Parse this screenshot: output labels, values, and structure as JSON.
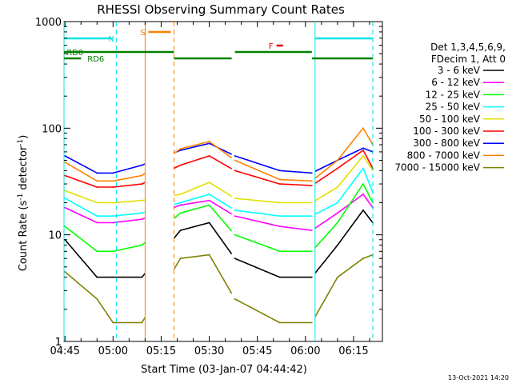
{
  "chart_data": {
    "type": "line",
    "title": "RHESSI Observing Summary Count Rates",
    "xlabel": "Start Time (03-Jan-07 04:44:42)",
    "ylabel_main": "Count Rate (s",
    "ylabel_sup1": "-1",
    "ylabel_mid": " detector",
    "ylabel_sup2": "-1",
    "ylabel_end": ")",
    "yscale": "log",
    "ylim": [
      1,
      1000
    ],
    "xlim": [
      "04:44:42",
      "06:24:00"
    ],
    "x_ticks": [
      "04:45",
      "05:00",
      "05:15",
      "05:30",
      "05:45",
      "06:00",
      "06:15"
    ],
    "y_ticks": [
      "1",
      "10",
      "100",
      "1000"
    ],
    "legend_header": [
      "Det 1,3,4,5,6,9,",
      "FDecim 1, Att 0"
    ],
    "legend_position": "right",
    "grid": false,
    "footer_date": "13-Oct-2021 14:20",
    "flag_labels": {
      "N": "N",
      "S": "S",
      "F": "F",
      "RD0": "RD0",
      "RD6": "RD6"
    },
    "colors": {
      "N": "#00e5e5",
      "S": "#ff8000",
      "F": "#e00000",
      "RD": "#008000"
    },
    "series": [
      {
        "name": "3 - 6 keV",
        "color": "#000000",
        "x": [
          "04:45",
          "04:55",
          "05:00",
          "05:09",
          "05:21",
          "05:30",
          "05:38",
          "05:52",
          "06:02",
          "06:10",
          "06:18",
          "06:21"
        ],
        "y": [
          9,
          4,
          4,
          4,
          11,
          13,
          6,
          4,
          4,
          8,
          17,
          13
        ]
      },
      {
        "name": "6 - 12 keV",
        "color": "#ff00ff",
        "x": [
          "04:45",
          "04:55",
          "05:00",
          "05:09",
          "05:21",
          "05:30",
          "05:38",
          "05:52",
          "06:02",
          "06:10",
          "06:18",
          "06:21"
        ],
        "y": [
          18,
          13,
          13,
          14,
          19,
          21,
          15,
          12,
          11,
          16,
          24,
          18
        ]
      },
      {
        "name": "12 - 25 keV",
        "color": "#00ff00",
        "x": [
          "04:45",
          "04:55",
          "05:00",
          "05:09",
          "05:21",
          "05:30",
          "05:38",
          "05:52",
          "06:02",
          "06:10",
          "06:18",
          "06:21"
        ],
        "y": [
          12,
          7,
          7,
          8,
          16,
          19,
          10,
          7,
          7,
          13,
          30,
          20
        ]
      },
      {
        "name": "25 - 50 keV",
        "color": "#00ffff",
        "x": [
          "04:45",
          "04:55",
          "05:00",
          "05:09",
          "05:21",
          "05:30",
          "05:38",
          "05:52",
          "06:02",
          "06:10",
          "06:18",
          "06:21"
        ],
        "y": [
          22,
          15,
          15,
          16,
          20,
          24,
          17,
          15,
          15,
          20,
          42,
          25
        ]
      },
      {
        "name": "50 - 100 keV",
        "color": "#e0e000",
        "x": [
          "04:45",
          "04:55",
          "05:00",
          "05:09",
          "05:21",
          "05:30",
          "05:38",
          "05:52",
          "06:02",
          "06:10",
          "06:18",
          "06:21"
        ],
        "y": [
          26,
          20,
          20,
          21,
          24,
          31,
          22,
          20,
          20,
          28,
          55,
          40
        ]
      },
      {
        "name": "100 - 300 keV",
        "color": "#ff0000",
        "x": [
          "04:45",
          "04:55",
          "05:00",
          "05:09",
          "05:21",
          "05:30",
          "05:38",
          "05:52",
          "06:02",
          "06:10",
          "06:18",
          "06:21"
        ],
        "y": [
          36,
          28,
          28,
          30,
          45,
          55,
          40,
          30,
          29,
          42,
          62,
          42
        ]
      },
      {
        "name": "300 - 800 keV",
        "color": "#0000ff",
        "x": [
          "04:45",
          "04:55",
          "05:00",
          "05:09",
          "05:21",
          "05:30",
          "05:38",
          "05:52",
          "06:02",
          "06:10",
          "06:18",
          "06:21"
        ],
        "y": [
          55,
          38,
          38,
          45,
          62,
          72,
          55,
          40,
          38,
          50,
          65,
          60
        ]
      },
      {
        "name": "800 - 7000 keV",
        "color": "#ff8000",
        "x": [
          "04:45",
          "04:55",
          "05:00",
          "05:09",
          "05:21",
          "05:30",
          "05:38",
          "05:52",
          "06:02",
          "06:10",
          "06:18",
          "06:21"
        ],
        "y": [
          48,
          32,
          32,
          36,
          64,
          75,
          50,
          33,
          32,
          50,
          100,
          70
        ]
      },
      {
        "name": "7000 - 15000 keV",
        "color": "#808000",
        "x": [
          "04:45",
          "04:55",
          "05:00",
          "05:09",
          "05:21",
          "05:30",
          "05:38",
          "05:52",
          "06:02",
          "06:10",
          "06:18",
          "06:21"
        ],
        "y": [
          4.5,
          2.5,
          1.5,
          1.5,
          6,
          6.5,
          2.5,
          1.5,
          1.5,
          4,
          6,
          6.5
        ]
      }
    ]
  }
}
